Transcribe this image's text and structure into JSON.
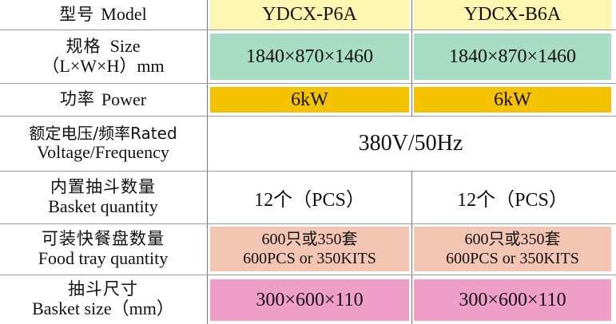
{
  "header": {
    "label_zh": "型号",
    "label_en": "Model",
    "model_a": "YDCX-P6A",
    "model_b": "YDCX-B6A"
  },
  "size": {
    "label_zh": "规格",
    "label_en": "Size",
    "label_unit": "（L×W×H）mm",
    "a": "1840×870×1460",
    "b": "1840×870×1460"
  },
  "power": {
    "label_zh": "功率",
    "label_en": "Power",
    "a": "6kW",
    "b": "6kW"
  },
  "voltage": {
    "label_line1": "额定电压/频率Rated",
    "label_line2": "Voltage/Frequency",
    "value": "380V/50Hz"
  },
  "basket_qty": {
    "label_zh": "内置抽斗数量",
    "label_en": "Basket quantity",
    "a": "12个（PCS）",
    "b": "12个（PCS）"
  },
  "food_tray": {
    "label_zh": "可装快餐盘数量",
    "label_en": "Food tray quantity",
    "a_line1": "600只或350套",
    "a_line2": "600PCS or 350KITS",
    "b_line1": "600只或350套",
    "b_line2": "600PCS or 350KITS"
  },
  "basket_size": {
    "label_zh": "抽斗尺寸",
    "label_en": "Basket size（mm）",
    "a": "300×600×110",
    "b": "300×600×110"
  },
  "colors": {
    "header_yellow": "#fdf6b0",
    "green": "#a9dcc5",
    "orange": "#f5c200",
    "salmon": "#f3c6b4",
    "pink": "#ef9ec7"
  }
}
